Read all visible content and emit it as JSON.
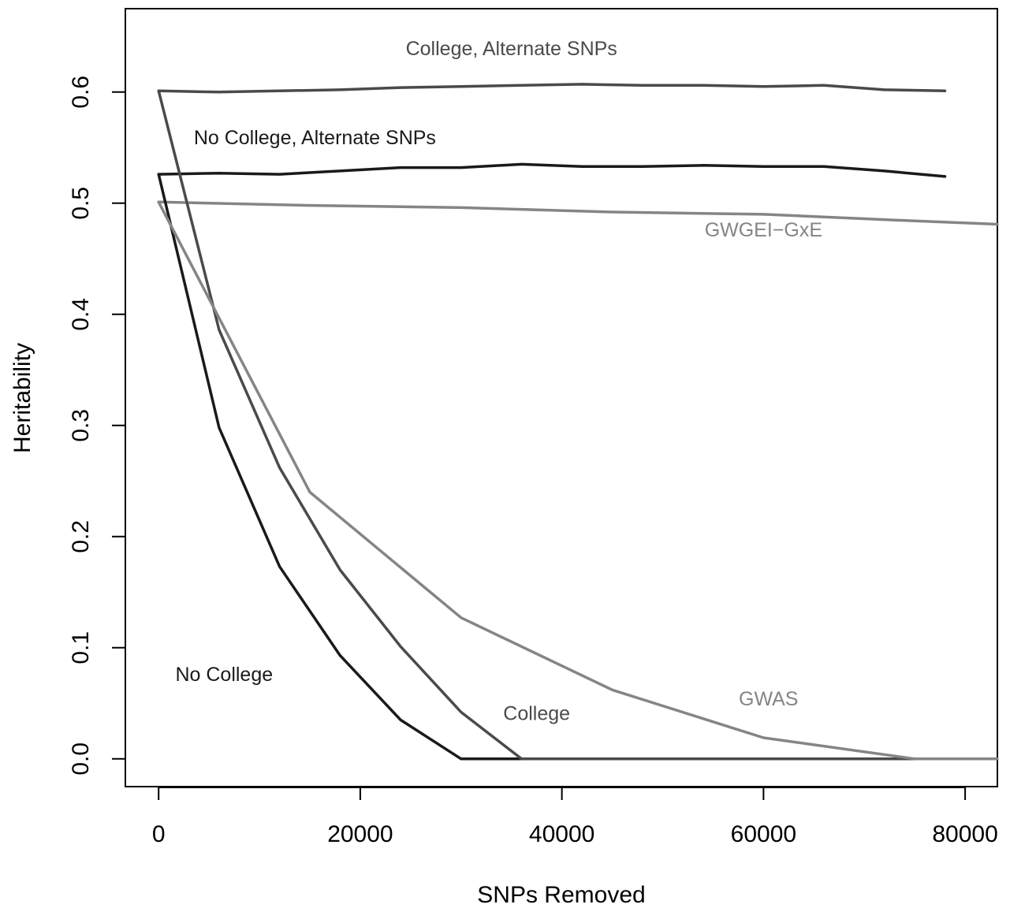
{
  "chart_data": {
    "type": "line",
    "title": "",
    "xlabel": "SNPs Removed",
    "ylabel": "Heritability",
    "xlim": [
      -3300,
      83200
    ],
    "ylim": [
      -0.025,
      0.675
    ],
    "x_ticks": [
      0,
      20000,
      40000,
      60000,
      80000
    ],
    "x_tick_labels": [
      "0",
      "20000",
      "40000",
      "60000",
      "80000"
    ],
    "y_ticks": [
      0.0,
      0.1,
      0.2,
      0.3,
      0.4,
      0.5,
      0.6
    ],
    "y_tick_labels": [
      "0.0",
      "0.1",
      "0.2",
      "0.3",
      "0.4",
      "0.5",
      "0.6"
    ],
    "grid": false,
    "legend": "none",
    "series": [
      {
        "name": "College, Alternate SNPs",
        "color": "#4a4a4a",
        "x": [
          0,
          6000,
          12000,
          18000,
          24000,
          30000,
          36000,
          42000,
          48000,
          54000,
          60000,
          66000,
          72000,
          78000
        ],
        "y": [
          0.601,
          0.6,
          0.601,
          0.602,
          0.604,
          0.605,
          0.606,
          0.607,
          0.606,
          0.606,
          0.605,
          0.606,
          0.602,
          0.601
        ]
      },
      {
        "name": "No College, Alternate SNPs",
        "color": "#1a1a1a",
        "x": [
          0,
          6000,
          12000,
          18000,
          24000,
          30000,
          36000,
          42000,
          48000,
          54000,
          60000,
          66000,
          72000,
          78000
        ],
        "y": [
          0.526,
          0.527,
          0.526,
          0.529,
          0.532,
          0.532,
          0.535,
          0.533,
          0.533,
          0.534,
          0.533,
          0.533,
          0.529,
          0.524
        ]
      },
      {
        "name": "GWGEI−GxE",
        "color": "#858585",
        "x": [
          0,
          15000,
          30000,
          45000,
          60000,
          75000,
          83200
        ],
        "y": [
          0.501,
          0.498,
          0.496,
          0.492,
          0.49,
          0.484,
          0.481
        ]
      },
      {
        "name": "No College",
        "color": "#1a1a1a",
        "x": [
          0,
          6000,
          12000,
          18000,
          24000,
          30000,
          36000,
          42000,
          48000,
          54000,
          60000,
          66000,
          72000,
          78000
        ],
        "y": [
          0.526,
          0.298,
          0.173,
          0.093,
          0.035,
          0.0,
          0.0,
          0.0,
          0.0,
          0.0,
          0.0,
          0.0,
          0.0,
          0.0
        ]
      },
      {
        "name": "College",
        "color": "#4a4a4a",
        "x": [
          0,
          6000,
          12000,
          18000,
          24000,
          30000,
          36000,
          42000,
          48000,
          54000,
          60000,
          66000,
          72000,
          78000
        ],
        "y": [
          0.601,
          0.386,
          0.262,
          0.17,
          0.101,
          0.042,
          0.0,
          0.0,
          0.0,
          0.0,
          0.0,
          0.0,
          0.0,
          0.0
        ]
      },
      {
        "name": "GWAS",
        "color": "#858585",
        "x": [
          0,
          15000,
          30000,
          45000,
          60000,
          75000,
          83200
        ],
        "y": [
          0.501,
          0.24,
          0.127,
          0.062,
          0.019,
          0.0,
          0.0
        ]
      }
    ],
    "annotations": [
      {
        "text": "College, Alternate SNPs",
        "x": 35000,
        "y": 0.633,
        "color": "#4a4a4a"
      },
      {
        "text": "No College, Alternate SNPs",
        "x": 15500,
        "y": 0.553,
        "color": "#1a1a1a"
      },
      {
        "text": "GWGEI−GxE",
        "x": 60000,
        "y": 0.47,
        "color": "#858585"
      },
      {
        "text": "No College",
        "x": 6500,
        "y": 0.07,
        "color": "#1a1a1a"
      },
      {
        "text": "College",
        "x": 37500,
        "y": 0.035,
        "color": "#4a4a4a"
      },
      {
        "text": "GWAS",
        "x": 60500,
        "y": 0.048,
        "color": "#858585"
      }
    ]
  }
}
